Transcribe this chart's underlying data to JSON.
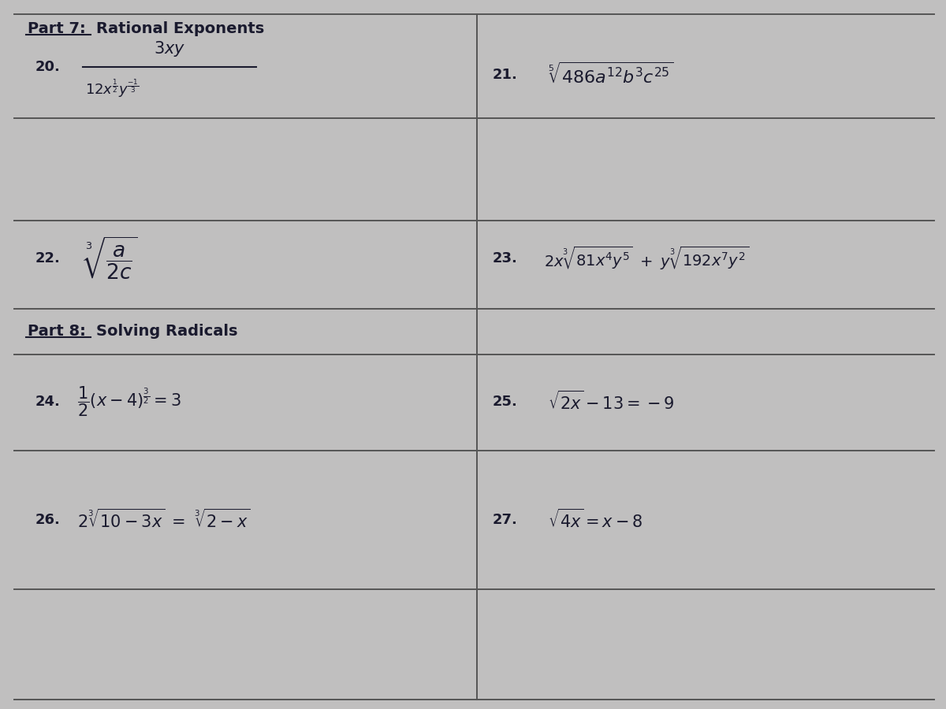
{
  "bg_color": "#c0bfbf",
  "panel_color": "#d4d3d3",
  "text_color": "#1a1a2e",
  "title_part7": "Part 7:",
  "subtitle_part7": "Rational Exponents",
  "title_part8": "Part 8:",
  "subtitle_part8": "Solving Radicals",
  "prob20_num": "20.",
  "prob21_num": "21.",
  "prob22_num": "22.",
  "prob23_num": "23.",
  "prob24_num": "24.",
  "prob25_num": "25.",
  "prob26_num": "26.",
  "prob27_num": "27.",
  "line_color": "#555555",
  "xlim": [
    0,
    12
  ],
  "ylim": [
    0,
    9
  ]
}
